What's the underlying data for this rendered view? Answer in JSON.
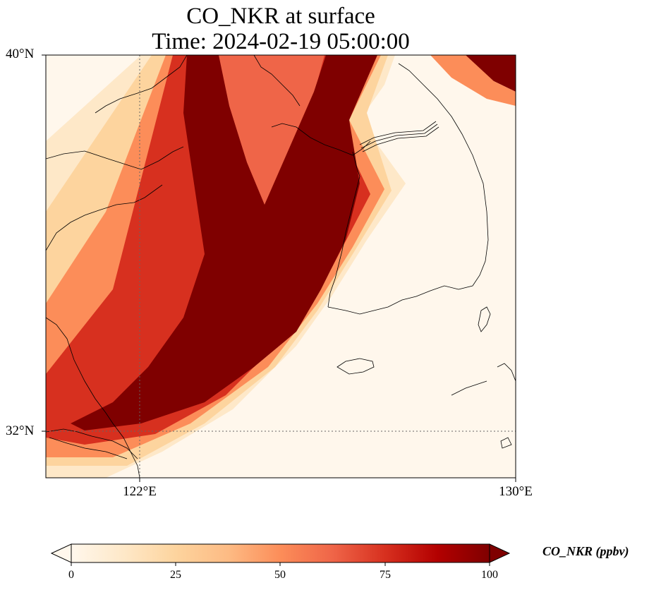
{
  "title": {
    "line1": "CO_NKR at surface",
    "line2": "Time: 2024-02-19 05:00:00"
  },
  "axes": {
    "lat_ticks": [
      "40°N",
      "32°N"
    ],
    "lon_ticks": [
      "122°E",
      "130°E"
    ],
    "lat_range": [
      31.0,
      40.0
    ],
    "lon_range": [
      120.0,
      130.0
    ],
    "gridlines": "dotted at 122°E and 32°N"
  },
  "colorbar": {
    "label": "CO_NKR (ppbv)",
    "ticks": [
      "0",
      "25",
      "50",
      "75",
      "100"
    ],
    "min": 0,
    "max": 100,
    "extend": "both",
    "colormap": "OrRd",
    "colors": [
      "#fff7ec",
      "#fee8c8",
      "#fdd49e",
      "#fdbb84",
      "#fc8d59",
      "#ef6548",
      "#d7301f",
      "#b30000",
      "#7f0000"
    ]
  },
  "map": {
    "variable": "CO_NKR",
    "level": "surface",
    "region": "Yellow Sea / Korean Peninsula",
    "plume_max_color": "#7f0000",
    "background_color": "#fff7ec"
  }
}
